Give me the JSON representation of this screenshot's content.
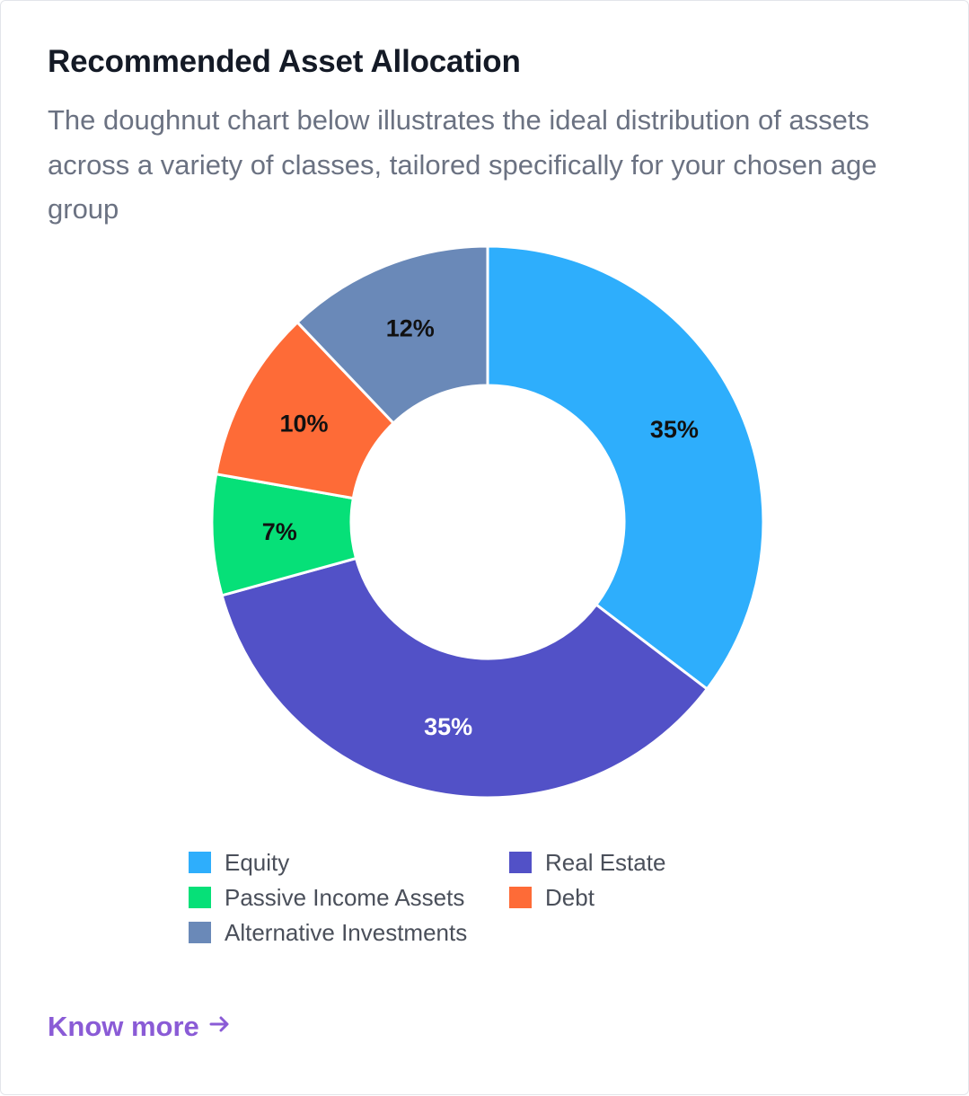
{
  "card": {
    "title": "Recommended Asset Allocation",
    "description": "The doughnut chart below illustrates the ideal distribution of assets across a variety of classes, tailored specifically for your chosen age group",
    "link_label": "Know more",
    "link_icon": "arrow-right-icon"
  },
  "chart_data": {
    "type": "pie",
    "subtype": "doughnut",
    "categories": [
      "Equity",
      "Real Estate",
      "Passive Income Assets",
      "Debt",
      "Alternative Investments"
    ],
    "values": [
      35,
      35,
      7,
      10,
      12
    ],
    "labels": [
      "35%",
      "35%",
      "7%",
      "10%",
      "12%"
    ],
    "colors": [
      "#2eaefc",
      "#5251c7",
      "#06e078",
      "#fe6b37",
      "#6a89b8"
    ],
    "label_colors": [
      "#111111",
      "#ffffff",
      "#111111",
      "#111111",
      "#111111"
    ],
    "legend": "bottom"
  }
}
